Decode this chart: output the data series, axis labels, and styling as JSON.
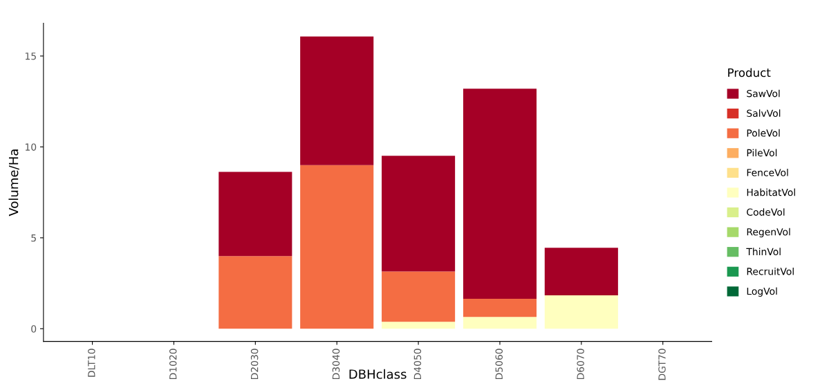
{
  "chart_data": {
    "type": "bar",
    "stacked": true,
    "xlabel": "DBHclass",
    "ylabel": "Volume/Ha",
    "legend_title": "Product",
    "legend": "right",
    "grid": false,
    "categories": [
      "DLT10",
      "D1020",
      "D2030",
      "D3040",
      "D4050",
      "D5060",
      "D6070",
      "DGT70"
    ],
    "ylim": [
      -0.7,
      16.8
    ],
    "yticks": [
      0,
      5,
      10,
      15
    ],
    "series": [
      {
        "name": "LogVol",
        "color": "#006837",
        "values": [
          0,
          0,
          0,
          0,
          0,
          0,
          0,
          0
        ]
      },
      {
        "name": "RecruitVol",
        "color": "#1a9850",
        "values": [
          0,
          0,
          0,
          0,
          0,
          0,
          0,
          0
        ]
      },
      {
        "name": "ThinVol",
        "color": "#66bd63",
        "values": [
          0,
          0,
          0,
          0,
          0,
          0,
          0,
          0
        ]
      },
      {
        "name": "RegenVol",
        "color": "#a6d96a",
        "values": [
          0,
          0,
          0,
          0,
          0,
          0,
          0,
          0
        ]
      },
      {
        "name": "CodeVol",
        "color": "#d9ef8b",
        "values": [
          0,
          0,
          0,
          0,
          0,
          0,
          0,
          0
        ]
      },
      {
        "name": "HabitatVol",
        "color": "#ffffbf",
        "values": [
          0,
          0,
          0,
          0,
          0.38,
          0.65,
          1.84,
          0
        ]
      },
      {
        "name": "FenceVol",
        "color": "#fee08b",
        "values": [
          0,
          0,
          0,
          0,
          0,
          0,
          0,
          0
        ]
      },
      {
        "name": "PileVol",
        "color": "#fdae61",
        "values": [
          0,
          0,
          0,
          0,
          0,
          0,
          0,
          0
        ]
      },
      {
        "name": "PoleVol",
        "color": "#f46d43",
        "values": [
          0,
          0,
          4.0,
          9.0,
          2.77,
          1.0,
          0,
          0
        ]
      },
      {
        "name": "SalvVol",
        "color": "#d73027",
        "values": [
          0,
          0,
          0,
          0,
          0,
          0,
          0,
          0
        ]
      },
      {
        "name": "SawVol",
        "color": "#a50026",
        "values": [
          0,
          0,
          4.63,
          7.07,
          6.36,
          11.55,
          2.61,
          0
        ]
      }
    ]
  }
}
